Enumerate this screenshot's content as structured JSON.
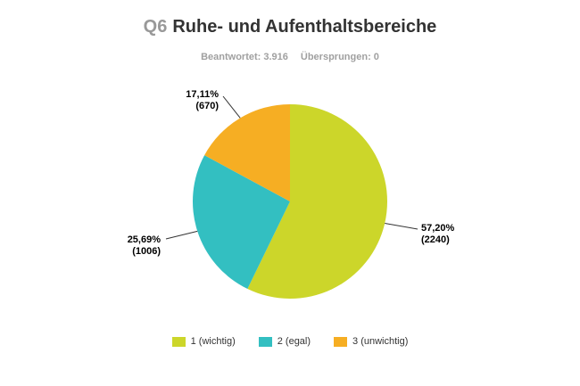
{
  "header": {
    "question_number": "Q6",
    "title": "Ruhe- und Aufenthaltsbereiche",
    "answered": "Beantwortet: 3.916",
    "skipped": "Übersprungen: 0"
  },
  "chart_data": {
    "type": "pie",
    "start_angle_deg": 0,
    "direction": "clockwise",
    "slices": [
      {
        "name": "1 (wichtig)",
        "value": 2240,
        "percent_label": "57,20%",
        "count_label": "(2240)",
        "color": "#CCD62A"
      },
      {
        "name": "2 (egal)",
        "value": 1006,
        "percent_label": "25,69%",
        "count_label": "(1006)",
        "color": "#33BFC1"
      },
      {
        "name": "3 (unwichtig)",
        "value": 670,
        "percent_label": "17,11%",
        "count_label": "(670)",
        "color": "#F6AE23"
      }
    ],
    "legend_position": "bottom"
  }
}
